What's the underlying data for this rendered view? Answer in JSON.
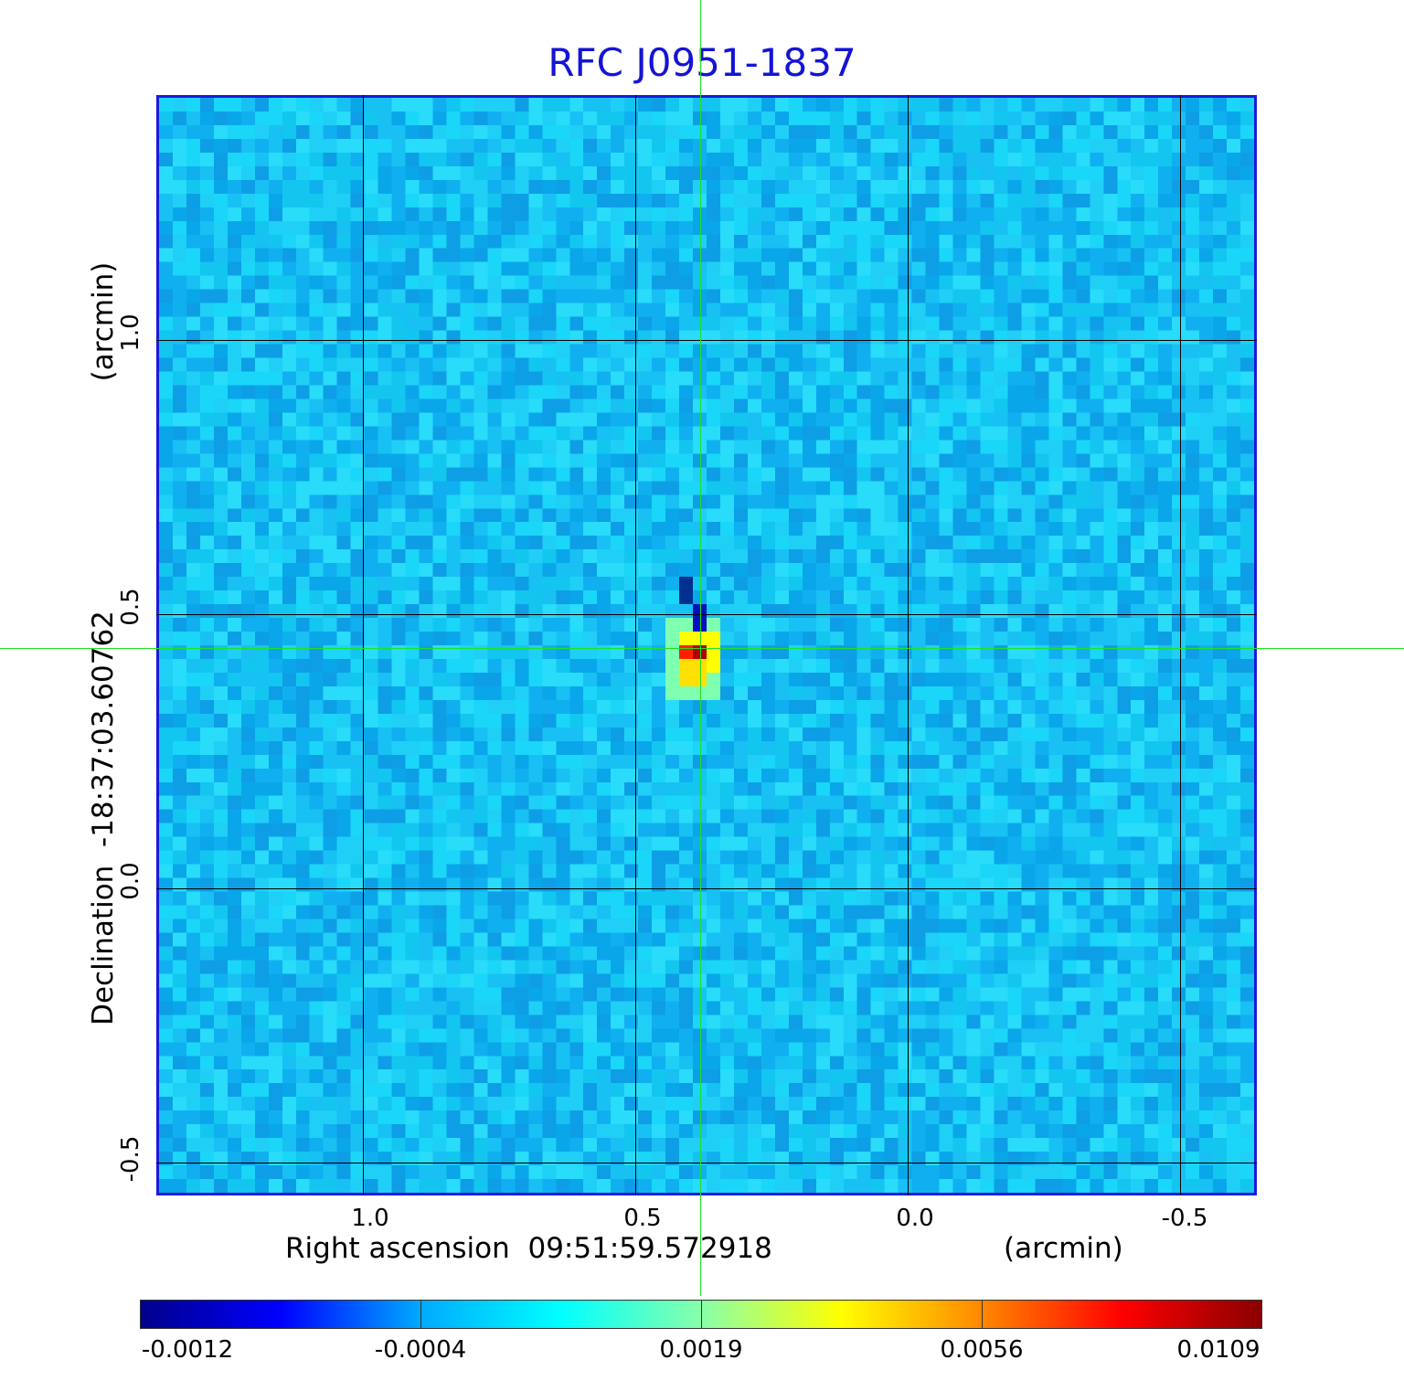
{
  "title": "RFC J0951-1837",
  "x_axis": {
    "label": "Right ascension  09:51:59.572918",
    "unit": "(arcmin)",
    "ticks": [
      "1.0",
      "0.5",
      "0.0",
      "-0.5"
    ]
  },
  "y_axis": {
    "label": "Declination  -18:37:03.60762",
    "unit": "(arcmin)",
    "ticks": [
      "1.0",
      "0.5",
      "0.0",
      "-0.5"
    ]
  },
  "colorbar": {
    "ticks": [
      "-0.0012",
      "-0.0004",
      "0.0019",
      "0.0056",
      "0.0109"
    ],
    "colormap": [
      "#00008b",
      "#0000ff",
      "#00aaff",
      "#00ffff",
      "#88ffaa",
      "#ffff00",
      "#ff8800",
      "#ff0000",
      "#8b0000"
    ]
  },
  "colors": {
    "title": "#1414d4",
    "frame": "#1a1adc",
    "crosshair": "#22e022"
  }
}
